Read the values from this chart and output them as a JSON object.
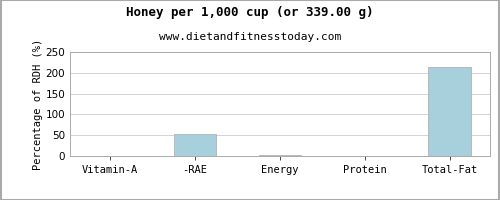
{
  "title": "Honey per 1,000 cup (or 339.00 g)",
  "subtitle": "www.dietandfitnesstoday.com",
  "categories": [
    "Vitamin-A",
    "-RAE",
    "Energy",
    "Protein",
    "Total-Fat"
  ],
  "values": [
    0,
    52,
    2,
    0,
    213
  ],
  "bar_color": "#a8d0dc",
  "ylabel": "Percentage of RDH (%)",
  "ylim": [
    0,
    250
  ],
  "yticks": [
    0,
    50,
    100,
    150,
    200,
    250
  ],
  "background_color": "#ffffff",
  "grid_color": "#cccccc",
  "border_color": "#aaaaaa",
  "title_fontsize": 9,
  "subtitle_fontsize": 8,
  "tick_fontsize": 7.5,
  "ylabel_fontsize": 7.5
}
